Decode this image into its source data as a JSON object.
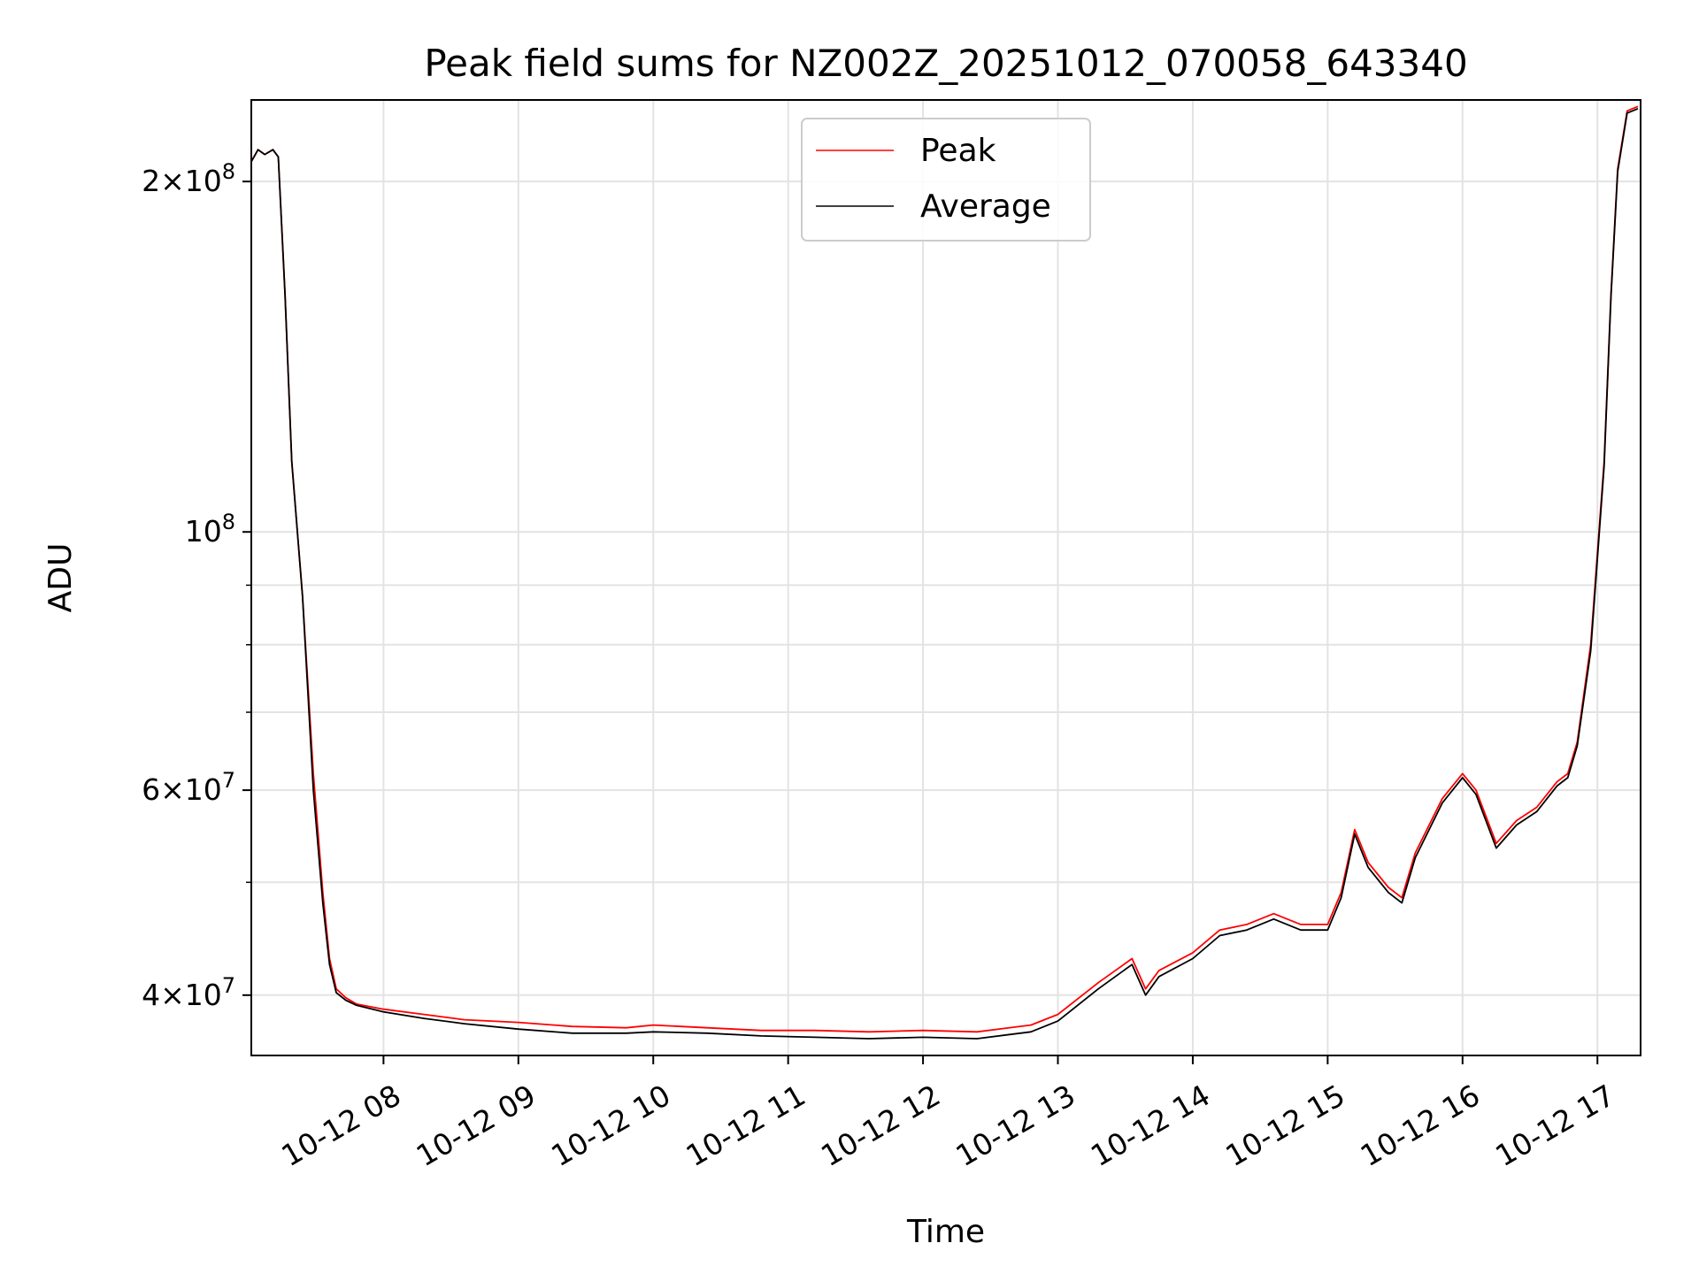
{
  "chart_data": {
    "type": "line",
    "title": "Peak field sums for NZ002Z_20251012_070058_643340",
    "xlabel": "Time",
    "ylabel": "ADU",
    "yscale": "log",
    "grid": true,
    "legend_position": "upper center",
    "x_tick_labels": [
      "10-12 08",
      "10-12 09",
      "10-12 10",
      "10-12 11",
      "10-12 12",
      "10-12 13",
      "10-12 14",
      "10-12 15",
      "10-12 16",
      "10-12 17"
    ],
    "x_tick_hours": [
      8,
      9,
      10,
      11,
      12,
      13,
      14,
      15,
      16,
      17
    ],
    "x_range_hours": [
      7.02,
      17.32
    ],
    "ylim": [
      35500000,
      235000000
    ],
    "y_ticks": [
      {
        "value": 40000000,
        "mant": "4",
        "exp": "7"
      },
      {
        "value": 60000000,
        "mant": "6",
        "exp": "7"
      },
      {
        "value": 100000000,
        "mant": "",
        "exp": "8"
      },
      {
        "value": 200000000,
        "mant": "2",
        "exp": "8"
      }
    ],
    "y_minor_ticks": [
      50000000,
      70000000,
      80000000,
      90000000
    ],
    "x_hours": [
      7.02,
      7.07,
      7.12,
      7.18,
      7.22,
      7.27,
      7.32,
      7.4,
      7.48,
      7.55,
      7.6,
      7.65,
      7.72,
      7.8,
      8.0,
      8.3,
      8.6,
      9.0,
      9.4,
      9.8,
      10.0,
      10.4,
      10.8,
      11.2,
      11.6,
      12.0,
      12.4,
      12.8,
      13.0,
      13.3,
      13.55,
      13.65,
      13.75,
      14.0,
      14.2,
      14.4,
      14.6,
      14.8,
      15.0,
      15.1,
      15.2,
      15.3,
      15.45,
      15.55,
      15.65,
      15.85,
      16.0,
      16.1,
      16.25,
      16.4,
      16.55,
      16.7,
      16.78,
      16.85,
      16.95,
      17.05,
      17.1,
      17.15,
      17.22,
      17.3
    ],
    "series": [
      {
        "name": "Peak",
        "color": "#ff0000",
        "values": [
          208000000,
          213000000,
          211000000,
          213000000,
          210000000,
          160000000,
          115000000,
          88000000,
          62000000,
          49000000,
          43000000,
          40500000,
          39800000,
          39300000,
          38900000,
          38500000,
          38100000,
          37900000,
          37600000,
          37500000,
          37700000,
          37500000,
          37300000,
          37300000,
          37200000,
          37300000,
          37200000,
          37700000,
          38500000,
          41000000,
          43000000,
          40500000,
          42000000,
          43500000,
          45500000,
          46000000,
          47000000,
          46000000,
          46000000,
          49000000,
          55500000,
          52000000,
          49500000,
          48500000,
          53000000,
          59000000,
          62000000,
          60000000,
          54000000,
          56500000,
          58000000,
          61000000,
          62000000,
          66000000,
          80000000,
          115000000,
          160000000,
          205000000,
          230000000,
          232000000
        ]
      },
      {
        "name": "Average",
        "color": "#000000",
        "values": [
          208000000,
          213000000,
          211000000,
          213000000,
          210000000,
          160000000,
          115000000,
          88000000,
          60000000,
          48000000,
          42500000,
          40200000,
          39600000,
          39200000,
          38700000,
          38200000,
          37800000,
          37400000,
          37100000,
          37100000,
          37200000,
          37100000,
          36900000,
          36800000,
          36700000,
          36800000,
          36700000,
          37200000,
          38000000,
          40500000,
          42500000,
          40000000,
          41500000,
          43000000,
          45000000,
          45500000,
          46500000,
          45500000,
          45500000,
          48500000,
          55000000,
          51500000,
          49000000,
          48000000,
          52500000,
          58500000,
          61500000,
          59500000,
          53500000,
          56000000,
          57500000,
          60500000,
          61500000,
          65500000,
          79000000,
          114000000,
          159000000,
          204000000,
          229000000,
          231000000
        ]
      }
    ]
  }
}
